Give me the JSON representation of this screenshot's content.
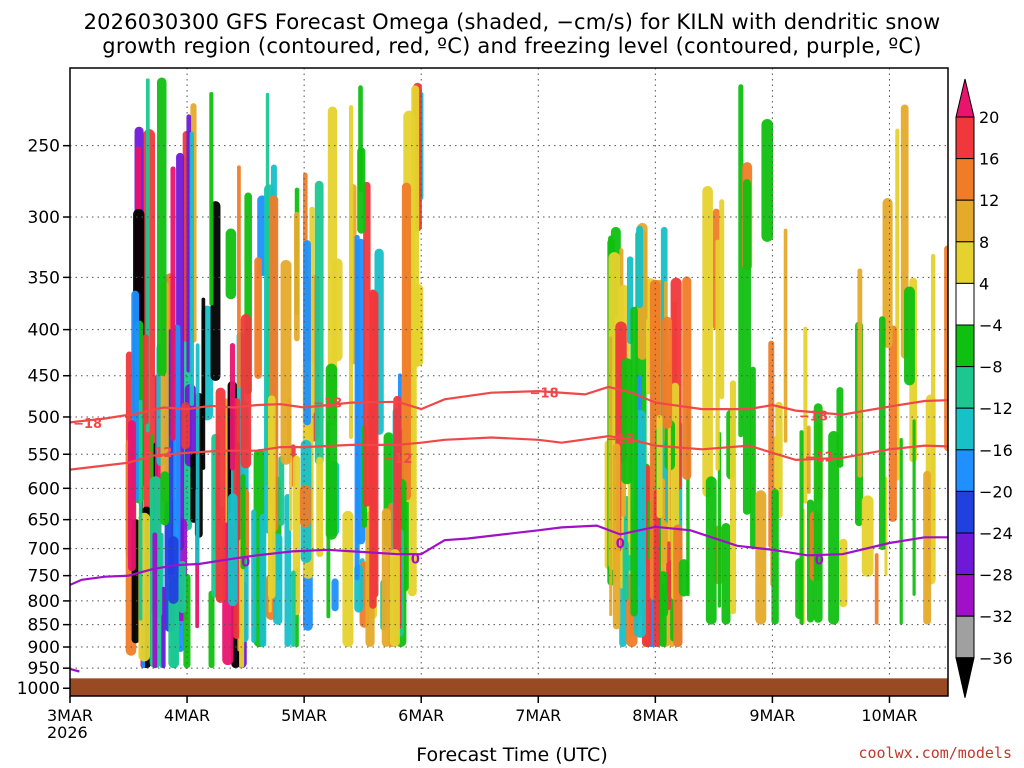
{
  "title_line1": "2026030300 GFS Forecast Omega (shaded, −cm/s) for KILN with dendritic snow",
  "title_line2": "growth region (contoured, red, ºC) and freezing level (contoured, purple, ºC)",
  "credit": "coolwx.com/models",
  "chart_data": {
    "type": "heatmap",
    "title": "2026030300 GFS Forecast Omega (shaded, −cm/s) for KILN with dendritic snow growth region (contoured, red, ºC) and freezing level (contoured, purple, ºC)",
    "xlabel": "Forecast Time (UTC)",
    "ylabel": "",
    "x_ticks": [
      "3MAR\n2026",
      "4MAR",
      "5MAR",
      "6MAR",
      "7MAR",
      "8MAR",
      "9MAR",
      "10MAR"
    ],
    "x_tick_labels": [
      {
        "label": "3MAR",
        "sub": "2026",
        "day": 0
      },
      {
        "label": "4MAR",
        "sub": "",
        "day": 1
      },
      {
        "label": "5MAR",
        "sub": "",
        "day": 2
      },
      {
        "label": "6MAR",
        "sub": "",
        "day": 3
      },
      {
        "label": "7MAR",
        "sub": "",
        "day": 4
      },
      {
        "label": "8MAR",
        "sub": "",
        "day": 5
      },
      {
        "label": "9MAR",
        "sub": "",
        "day": 6
      },
      {
        "label": "10MAR",
        "sub": "",
        "day": 7
      }
    ],
    "xlim_days": [
      0,
      7.5
    ],
    "y_ticks": [
      250,
      300,
      350,
      400,
      450,
      500,
      550,
      600,
      650,
      700,
      750,
      800,
      850,
      900,
      950,
      1000
    ],
    "ylim_hpa": [
      205,
      1020
    ],
    "y_scale": "log",
    "surface_hpa": 975,
    "colorbar": {
      "levels": [
        "20",
        "16",
        "12",
        "8",
        "4",
        "−4",
        "−8",
        "−12",
        "−16",
        "−20",
        "−24",
        "−28",
        "−32",
        "−36"
      ],
      "colors": [
        "#e8146e",
        "#f0383c",
        "#f07c28",
        "#e6aa2a",
        "#e6d22e",
        "#ffffff",
        "#10c010",
        "#1cc890",
        "#18c0c8",
        "#1e90ff",
        "#2040e0",
        "#7018d8",
        "#a010c8",
        "#a0a0a0",
        "#000000"
      ]
    },
    "contours": [
      {
        "name": "−18",
        "color": "#f04848",
        "labels": [
          {
            "text": "−18",
            "day": 0.15,
            "hpa": 508
          },
          {
            "text": "−18",
            "day": 2.2,
            "hpa": 482
          },
          {
            "text": "−18",
            "day": 4.05,
            "hpa": 470
          },
          {
            "text": "−18",
            "day": 6.35,
            "hpa": 498
          }
        ],
        "points": [
          [
            0,
            507
          ],
          [
            0.3,
            502
          ],
          [
            0.6,
            495
          ],
          [
            0.8,
            488
          ],
          [
            1.0,
            490
          ],
          [
            1.2,
            486
          ],
          [
            1.4,
            488
          ],
          [
            1.6,
            485
          ],
          [
            1.8,
            484
          ],
          [
            2.0,
            488
          ],
          [
            2.4,
            482
          ],
          [
            2.8,
            481
          ],
          [
            3.0,
            490
          ],
          [
            3.2,
            478
          ],
          [
            3.6,
            470
          ],
          [
            4.0,
            468
          ],
          [
            4.4,
            472
          ],
          [
            4.6,
            463
          ],
          [
            4.8,
            470
          ],
          [
            5.0,
            482
          ],
          [
            5.4,
            490
          ],
          [
            5.8,
            490
          ],
          [
            6.0,
            485
          ],
          [
            6.2,
            492
          ],
          [
            6.6,
            497
          ],
          [
            7.0,
            487
          ],
          [
            7.3,
            480
          ],
          [
            7.5,
            479
          ]
        ]
      },
      {
        "name": "−12",
        "color": "#f04848",
        "labels": [
          {
            "text": "−12",
            "day": 0.75,
            "hpa": 547
          },
          {
            "text": "−12",
            "day": 2.8,
            "hpa": 555
          },
          {
            "text": "−12",
            "day": 4.7,
            "hpa": 528
          },
          {
            "text": "−12",
            "day": 6.4,
            "hpa": 553
          }
        ],
        "points": [
          [
            0,
            572
          ],
          [
            0.2,
            568
          ],
          [
            0.5,
            562
          ],
          [
            0.7,
            552
          ],
          [
            1.0,
            548
          ],
          [
            1.3,
            545
          ],
          [
            1.6,
            545
          ],
          [
            1.8,
            540
          ],
          [
            2.0,
            540
          ],
          [
            2.4,
            537
          ],
          [
            2.8,
            537
          ],
          [
            3.0,
            534
          ],
          [
            3.2,
            530
          ],
          [
            3.6,
            527
          ],
          [
            4.0,
            530
          ],
          [
            4.2,
            534
          ],
          [
            4.6,
            525
          ],
          [
            4.8,
            530
          ],
          [
            5.0,
            538
          ],
          [
            5.4,
            543
          ],
          [
            5.8,
            538
          ],
          [
            6.0,
            548
          ],
          [
            6.2,
            558
          ],
          [
            6.6,
            555
          ],
          [
            7.0,
            543
          ],
          [
            7.3,
            538
          ],
          [
            7.5,
            539
          ]
        ]
      },
      {
        "name": "0",
        "color": "#a010c8",
        "labels": [
          {
            "text": "0",
            "day": 1.5,
            "hpa": 723
          },
          {
            "text": "0",
            "day": 2.95,
            "hpa": 718
          },
          {
            "text": "0",
            "day": 4.7,
            "hpa": 690
          },
          {
            "text": "0",
            "day": 6.4,
            "hpa": 720
          }
        ],
        "points": [
          [
            0,
            768
          ],
          [
            0.1,
            758
          ],
          [
            0.3,
            752
          ],
          [
            0.5,
            750
          ],
          [
            0.7,
            738
          ],
          [
            0.9,
            730
          ],
          [
            1.1,
            728
          ],
          [
            1.4,
            718
          ],
          [
            1.6,
            712
          ],
          [
            1.9,
            705
          ],
          [
            2.2,
            702
          ],
          [
            2.5,
            706
          ],
          [
            2.8,
            710
          ],
          [
            3.0,
            710
          ],
          [
            3.2,
            685
          ],
          [
            3.4,
            682
          ],
          [
            3.7,
            675
          ],
          [
            4.0,
            668
          ],
          [
            4.2,
            663
          ],
          [
            4.5,
            660
          ],
          [
            4.7,
            675
          ],
          [
            5.0,
            662
          ],
          [
            5.3,
            668
          ],
          [
            5.7,
            695
          ],
          [
            6.0,
            702
          ],
          [
            6.3,
            712
          ],
          [
            6.6,
            710
          ],
          [
            7.0,
            690
          ],
          [
            7.3,
            680
          ],
          [
            7.5,
            680
          ]
        ]
      },
      {
        "name": "",
        "color": "#a010c8",
        "labels": [],
        "points": [
          [
            0,
            952
          ],
          [
            0.08,
            958
          ]
        ]
      }
    ],
    "omega_regions": [
      {
        "day0": 0.5,
        "day1": 1.5,
        "hpa0": 210,
        "hpa1": 950,
        "intensity": "strong"
      },
      {
        "day0": 1.5,
        "day1": 3.0,
        "hpa0": 210,
        "hpa1": 900,
        "intensity": "moderate"
      },
      {
        "day0": 4.6,
        "day1": 5.2,
        "hpa0": 300,
        "hpa1": 900,
        "intensity": "moderate"
      },
      {
        "day0": 5.2,
        "day1": 7.5,
        "hpa0": 210,
        "hpa1": 850,
        "intensity": "weak"
      }
    ]
  }
}
